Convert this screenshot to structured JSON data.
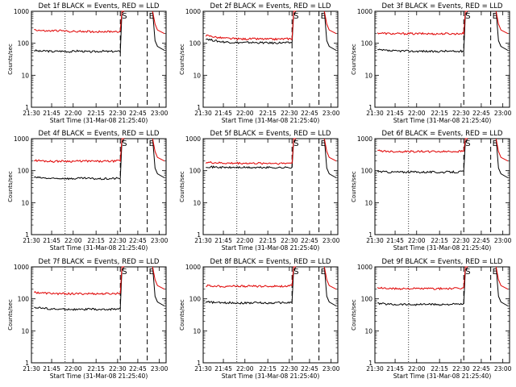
{
  "chart_data": [
    {
      "type": "line",
      "title": "Det 1f BLACK = Events, RED = LLD",
      "xlabel": "Start Time (31-Mar-08 21:25:40)",
      "ylabel": "Counts/sec",
      "xticks": [
        "21:30",
        "21:45",
        "22:00",
        "22:15",
        "22:30",
        "22:45",
        "23:00"
      ],
      "yticks": [
        "1",
        "10",
        "100",
        "1000"
      ],
      "yscale": "log",
      "ylim": [
        1,
        1000
      ],
      "markers": [
        "S",
        "E"
      ],
      "series": [
        {
          "color": "#000000",
          "values": [
            60,
            56,
            58,
            55,
            57,
            56,
            55,
            58,
            56,
            54,
            55,
            57,
            55,
            56,
            55,
            900
          ]
        },
        {
          "color": "#e00000",
          "values": [
            270,
            250,
            240,
            245,
            250,
            240,
            235,
            230,
            238,
            232,
            228,
            235,
            230,
            235,
            232,
            1000
          ]
        }
      ]
    },
    {
      "type": "line",
      "title": "Det 2f BLACK = Events, RED = LLD",
      "xlabel": "Start Time (31-Mar-08 21:25:40)",
      "ylabel": "Counts/sec",
      "xticks": [
        "21:30",
        "21:45",
        "22:00",
        "22:15",
        "22:30",
        "22:45",
        "23:00"
      ],
      "yticks": [
        "1",
        "10",
        "100",
        "1000"
      ],
      "yscale": "log",
      "ylim": [
        1,
        1000
      ],
      "markers": [
        "S",
        "E"
      ],
      "series": [
        {
          "color": "#000000",
          "values": [
            140,
            125,
            115,
            110,
            108,
            105,
            104,
            106,
            105,
            104,
            103,
            102,
            104,
            103,
            105,
            800
          ]
        },
        {
          "color": "#e00000",
          "values": [
            175,
            165,
            150,
            145,
            140,
            138,
            136,
            138,
            137,
            136,
            135,
            134,
            136,
            138,
            140,
            1000
          ]
        }
      ]
    },
    {
      "type": "line",
      "title": "Det 3f BLACK = Events, RED = LLD",
      "xlabel": "Start Time (31-Mar-08 21:25:40)",
      "ylabel": "Counts/sec",
      "xticks": [
        "21:30",
        "21:45",
        "22:00",
        "22:15",
        "22:30",
        "22:45",
        "23:00"
      ],
      "yticks": [
        "1",
        "10",
        "100",
        "1000"
      ],
      "yscale": "log",
      "ylim": [
        1,
        1000
      ],
      "markers": [
        "S",
        "E"
      ],
      "series": [
        {
          "color": "#000000",
          "values": [
            62,
            60,
            58,
            57,
            58,
            57,
            56,
            57,
            56,
            55,
            56,
            57,
            56,
            55,
            58,
            800
          ]
        },
        {
          "color": "#e00000",
          "values": [
            210,
            205,
            200,
            198,
            200,
            202,
            198,
            200,
            199,
            197,
            198,
            200,
            199,
            198,
            205,
            1000
          ]
        }
      ]
    },
    {
      "type": "line",
      "title": "Det 4f BLACK = Events, RED = LLD",
      "xlabel": "Start Time (31-Mar-08 21:25:40)",
      "ylabel": "Counts/sec",
      "xticks": [
        "21:30",
        "21:45",
        "22:00",
        "22:15",
        "22:30",
        "22:45",
        "23:00"
      ],
      "yticks": [
        "1",
        "10",
        "100",
        "1000"
      ],
      "yscale": "log",
      "ylim": [
        1,
        1000
      ],
      "markers": [
        "S",
        "E"
      ],
      "series": [
        {
          "color": "#000000",
          "values": [
            62,
            60,
            58,
            56,
            57,
            58,
            56,
            57,
            58,
            57,
            56,
            55,
            56,
            57,
            58,
            800
          ]
        },
        {
          "color": "#e00000",
          "values": [
            210,
            205,
            200,
            195,
            198,
            200,
            196,
            198,
            200,
            198,
            196,
            195,
            197,
            198,
            205,
            1000
          ]
        }
      ]
    },
    {
      "type": "line",
      "title": "Det 5f BLACK = Events, RED = LLD",
      "xlabel": "Start Time (31-Mar-08 21:25:40)",
      "ylabel": "Counts/sec",
      "xticks": [
        "21:30",
        "21:45",
        "22:00",
        "22:15",
        "22:30",
        "22:45",
        "23:00"
      ],
      "yticks": [
        "1",
        "10",
        "100",
        "1000"
      ],
      "yscale": "log",
      "ylim": [
        1,
        1000
      ],
      "markers": [
        "S",
        "E"
      ],
      "series": [
        {
          "color": "#000000",
          "values": [
            135,
            130,
            128,
            126,
            125,
            127,
            126,
            125,
            124,
            125,
            126,
            125,
            124,
            125,
            128,
            800
          ]
        },
        {
          "color": "#e00000",
          "values": [
            180,
            178,
            175,
            172,
            170,
            172,
            171,
            170,
            169,
            170,
            171,
            170,
            169,
            170,
            175,
            1000
          ]
        }
      ]
    },
    {
      "type": "line",
      "title": "Det 6f BLACK = Events, RED = LLD",
      "xlabel": "Start Time (31-Mar-08 21:25:40)",
      "ylabel": "Counts/sec",
      "xticks": [
        "21:30",
        "21:45",
        "22:00",
        "22:15",
        "22:30",
        "22:45",
        "23:00"
      ],
      "yticks": [
        "1",
        "10",
        "100",
        "1000"
      ],
      "yscale": "log",
      "ylim": [
        1,
        1000
      ],
      "markers": [
        "S",
        "E"
      ],
      "series": [
        {
          "color": "#000000",
          "values": [
            95,
            92,
            90,
            91,
            90,
            92,
            91,
            90,
            91,
            90,
            89,
            90,
            91,
            90,
            95,
            800
          ]
        },
        {
          "color": "#e00000",
          "values": [
            420,
            410,
            400,
            395,
            398,
            400,
            396,
            398,
            400,
            397,
            395,
            396,
            398,
            400,
            410,
            1000
          ]
        }
      ]
    },
    {
      "type": "line",
      "title": "Det 7f BLACK = Events, RED = LLD",
      "xlabel": "Start Time (31-Mar-08 21:25:40)",
      "ylabel": "Counts/sec",
      "xticks": [
        "21:30",
        "21:45",
        "22:00",
        "22:15",
        "22:30",
        "22:45",
        "23:00"
      ],
      "yticks": [
        "1",
        "10",
        "100",
        "1000"
      ],
      "yscale": "log",
      "ylim": [
        1,
        1000
      ],
      "markers": [
        "S",
        "E"
      ],
      "series": [
        {
          "color": "#000000",
          "values": [
            55,
            52,
            50,
            48,
            47,
            48,
            47,
            46,
            47,
            48,
            47,
            46,
            47,
            48,
            50,
            800
          ]
        },
        {
          "color": "#e00000",
          "values": [
            160,
            155,
            150,
            148,
            145,
            146,
            145,
            144,
            145,
            146,
            145,
            144,
            145,
            146,
            150,
            1000
          ]
        }
      ]
    },
    {
      "type": "line",
      "title": "Det 8f BLACK = Events, RED = LLD",
      "xlabel": "Start Time (31-Mar-08 21:25:40)",
      "ylabel": "Counts/sec",
      "xticks": [
        "21:30",
        "21:45",
        "22:00",
        "22:15",
        "22:30",
        "22:45",
        "23:00"
      ],
      "yticks": [
        "1",
        "10",
        "100",
        "1000"
      ],
      "yscale": "log",
      "ylim": [
        1,
        1000
      ],
      "markers": [
        "S",
        "E"
      ],
      "series": [
        {
          "color": "#000000",
          "values": [
            80,
            78,
            76,
            75,
            76,
            75,
            74,
            75,
            76,
            75,
            74,
            75,
            76,
            75,
            78,
            800
          ]
        },
        {
          "color": "#e00000",
          "values": [
            260,
            255,
            250,
            248,
            250,
            252,
            248,
            250,
            249,
            248,
            247,
            250,
            249,
            250,
            255,
            1000
          ]
        }
      ]
    },
    {
      "type": "line",
      "title": "Det 9f BLACK = Events, RED = LLD",
      "xlabel": "Start Time (31-Mar-08 21:25:40)",
      "ylabel": "Counts/sec",
      "xticks": [
        "21:30",
        "21:45",
        "22:00",
        "22:15",
        "22:30",
        "22:45",
        "23:00"
      ],
      "yticks": [
        "1",
        "10",
        "100",
        "1000"
      ],
      "yscale": "log",
      "ylim": [
        1,
        1000
      ],
      "markers": [
        "S",
        "E"
      ],
      "series": [
        {
          "color": "#000000",
          "values": [
            72,
            70,
            68,
            67,
            68,
            67,
            66,
            67,
            68,
            67,
            66,
            67,
            68,
            67,
            70,
            800
          ]
        },
        {
          "color": "#e00000",
          "values": [
            220,
            215,
            210,
            208,
            210,
            212,
            208,
            210,
            209,
            208,
            207,
            210,
            209,
            210,
            215,
            1000
          ]
        }
      ]
    }
  ]
}
